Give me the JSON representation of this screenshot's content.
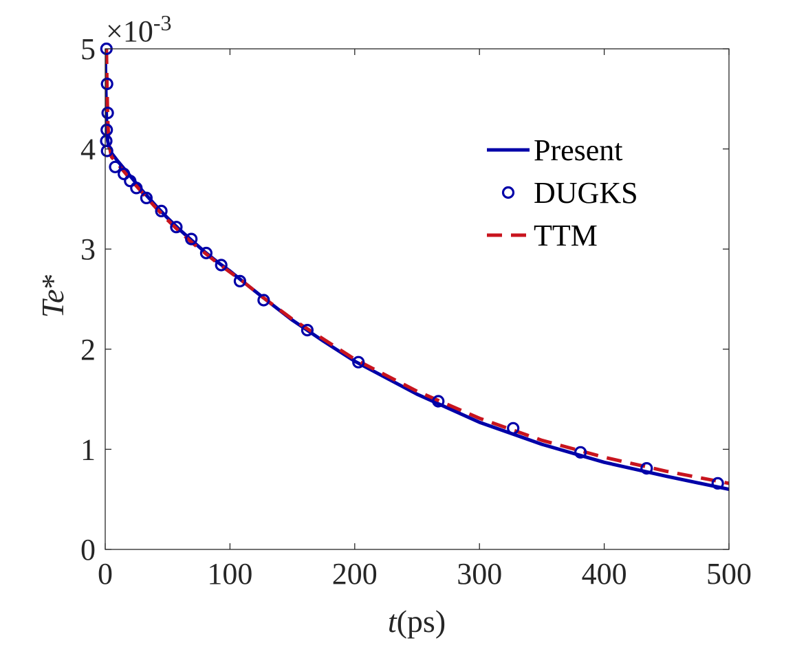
{
  "chart_data": {
    "type": "line",
    "xlabel_var": "t",
    "xlabel_unit": "(ps)",
    "ylabel_var": "Te",
    "ylabel_suffix": "*",
    "y_scale_prefix": "×10",
    "y_scale_exponent": "-3",
    "xlim": [
      0,
      500
    ],
    "ylim": [
      0,
      5
    ],
    "xticks": [
      0,
      100,
      200,
      300,
      400,
      500
    ],
    "yticks": [
      0,
      1,
      2,
      3,
      4,
      5
    ],
    "grid": false,
    "legend_position": "top-right",
    "colors": {
      "present": "#0000a8",
      "dugks": "#0000a8",
      "ttm": "#c8141e",
      "axis": "#262626"
    },
    "series": [
      {
        "name": "Present",
        "style": "solid",
        "x": [
          0,
          0.5,
          1,
          2,
          3,
          5,
          10,
          20,
          30,
          40,
          50,
          60,
          70,
          80,
          90,
          100,
          110,
          125,
          150,
          175,
          200,
          250,
          300,
          350,
          400,
          450,
          500
        ],
        "y": [
          5.0,
          4.6,
          4.3,
          4.08,
          4.02,
          3.96,
          3.88,
          3.73,
          3.58,
          3.44,
          3.31,
          3.19,
          3.08,
          2.97,
          2.87,
          2.78,
          2.68,
          2.53,
          2.29,
          2.08,
          1.88,
          1.55,
          1.27,
          1.05,
          0.87,
          0.73,
          0.6
        ]
      },
      {
        "name": "DUGKS",
        "style": "markers",
        "x": [
          1,
          1.5,
          2,
          1.2,
          0.8,
          1.5,
          8,
          15,
          20,
          25,
          33,
          45,
          57,
          69,
          81,
          93,
          108,
          127,
          162,
          203,
          267,
          327,
          381,
          434,
          491
        ],
        "y": [
          5.0,
          4.65,
          4.36,
          4.19,
          4.08,
          3.98,
          3.82,
          3.75,
          3.68,
          3.61,
          3.51,
          3.38,
          3.22,
          3.1,
          2.96,
          2.84,
          2.68,
          2.49,
          2.19,
          1.87,
          1.48,
          1.21,
          0.97,
          0.81,
          0.66
        ]
      },
      {
        "name": "TTM",
        "style": "dashed",
        "x": [
          1,
          1.5,
          2,
          3,
          5,
          10,
          20,
          30,
          40,
          50,
          60,
          70,
          80,
          90,
          100,
          110,
          125,
          150,
          175,
          200,
          250,
          300,
          350,
          400,
          450,
          500
        ],
        "y": [
          5.0,
          4.6,
          4.3,
          4.05,
          3.92,
          3.85,
          3.7,
          3.56,
          3.42,
          3.29,
          3.17,
          3.06,
          2.96,
          2.86,
          2.77,
          2.68,
          2.53,
          2.3,
          2.1,
          1.9,
          1.58,
          1.31,
          1.09,
          0.92,
          0.78,
          0.66
        ]
      }
    ]
  }
}
